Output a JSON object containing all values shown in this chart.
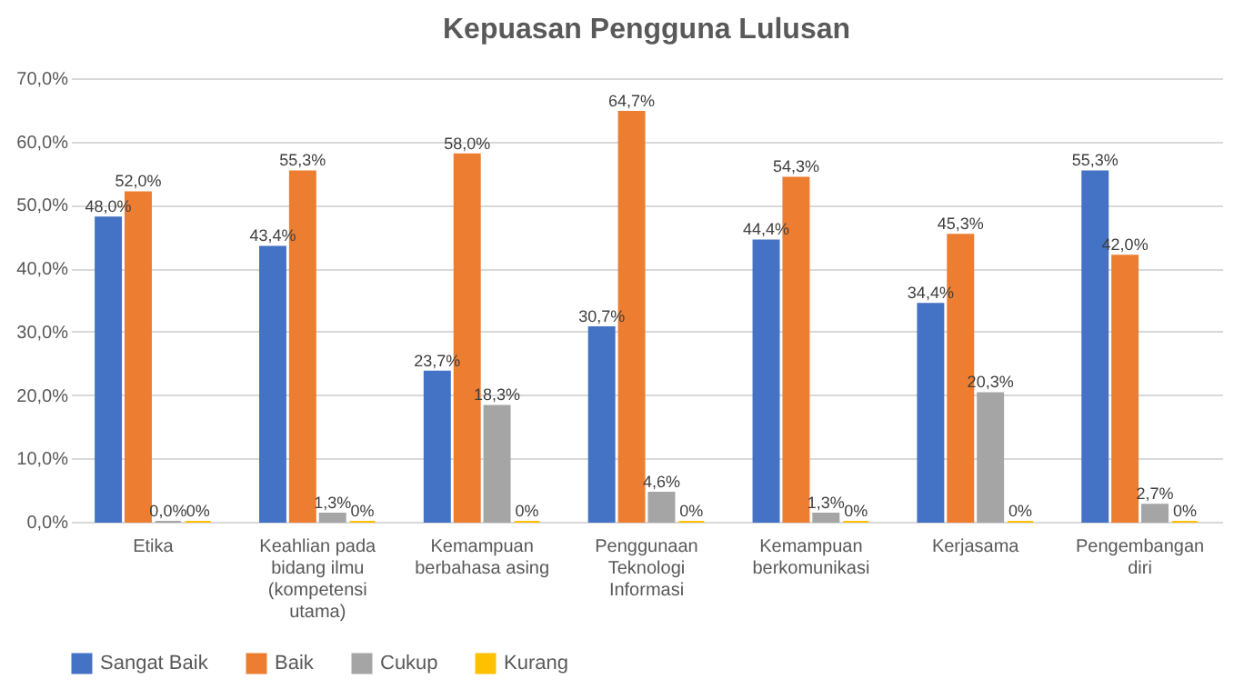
{
  "chart_data": {
    "type": "bar",
    "title": "Kepuasan Pengguna Lulusan",
    "categories": [
      "Etika",
      "Keahlian pada bidang ilmu (kompetensi utama)",
      "Kemampuan berbahasa asing",
      "Penggunaan Teknologi Informasi",
      "Kemampuan berkomunikasi",
      "Kerjasama",
      "Pengembangan diri"
    ],
    "series": [
      {
        "name": "Sangat Baik",
        "color": "#4472c4",
        "values": [
          48.0,
          43.4,
          23.7,
          30.7,
          44.4,
          34.4,
          55.3
        ],
        "value_labels": [
          "48,0%",
          "43,4%",
          "23,7%",
          "30,7%",
          "44,4%",
          "34,4%",
          "55,3%"
        ]
      },
      {
        "name": "Baik",
        "color": "#ed7d31",
        "values": [
          52.0,
          55.3,
          58.0,
          64.7,
          54.3,
          45.3,
          42.0
        ],
        "value_labels": [
          "52,0%",
          "55,3%",
          "58,0%",
          "64,7%",
          "54,3%",
          "45,3%",
          "42,0%"
        ]
      },
      {
        "name": "Cukup",
        "color": "#a5a5a5",
        "values": [
          0.0,
          1.3,
          18.3,
          4.6,
          1.3,
          20.3,
          2.7
        ],
        "value_labels": [
          "0,0%",
          "1,3%",
          "18,3%",
          "4,6%",
          "1,3%",
          "20,3%",
          "2,7%"
        ]
      },
      {
        "name": "Kurang",
        "color": "#ffc000",
        "values": [
          0,
          0,
          0,
          0,
          0,
          0,
          0
        ],
        "value_labels": [
          "0%",
          "0%",
          "0%",
          "0%",
          "0%",
          "0%",
          "0%"
        ]
      }
    ],
    "ylim": [
      0,
      70
    ],
    "yticks": [
      {
        "value": 0,
        "label": "0,0%"
      },
      {
        "value": 10,
        "label": "10,0%"
      },
      {
        "value": 20,
        "label": "20,0%"
      },
      {
        "value": 30,
        "label": "30,0%"
      },
      {
        "value": 40,
        "label": "40,0%"
      },
      {
        "value": 50,
        "label": "50,0%"
      },
      {
        "value": 60,
        "label": "60,0%"
      },
      {
        "value": 70,
        "label": "70,0%"
      }
    ],
    "grid": "y",
    "legend": "bottom"
  }
}
